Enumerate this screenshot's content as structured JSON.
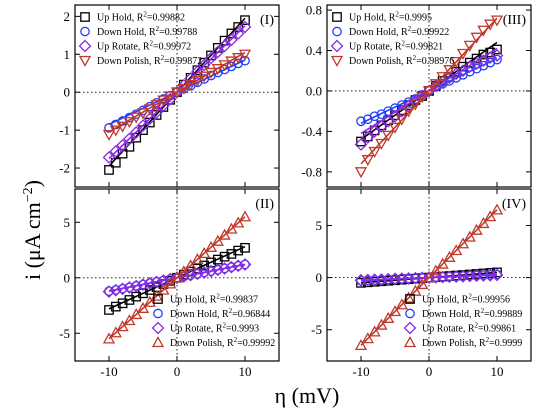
{
  "figure": {
    "ylabel_text": "i (μA cm",
    "ylabel_sup": "−2",
    "ylabel_close": ")",
    "xlabel_text": "η (mV)"
  },
  "chart_data": [
    {
      "type": "scatter",
      "panel": "(I)",
      "grid": false,
      "legend_position": "top-left",
      "xlim": [
        -15,
        15
      ],
      "ylim": [
        -2.5,
        2.3
      ],
      "x_ticks": [
        -10,
        0,
        10
      ],
      "x_tick_labels": [
        "",
        "",
        ""
      ],
      "y_ticks": [
        -2,
        -1,
        0,
        1,
        2
      ],
      "y_tick_labels": [
        "-2",
        "-1",
        "0",
        "1",
        "2"
      ],
      "x": [
        -10,
        -9,
        -8,
        -7,
        -6,
        -5,
        -4,
        -3,
        -2,
        -1,
        0,
        1,
        2,
        3,
        4,
        5,
        6,
        7,
        8,
        9,
        10
      ],
      "series": [
        {
          "name": "Up Hold",
          "r2_label": "Up Hold, R²=0.99882",
          "marker": "square",
          "color": "#000000",
          "slope": 0.195,
          "values": [
            -2.05,
            -1.86,
            -1.62,
            -1.44,
            -1.2,
            -1.0,
            -0.8,
            -0.6,
            -0.39,
            -0.2,
            0.0,
            0.2,
            0.38,
            0.58,
            0.78,
            0.97,
            1.17,
            1.36,
            1.55,
            1.72,
            1.9
          ]
        },
        {
          "name": "Down Hold",
          "r2_label": "Down Hold, R²=0.99788",
          "marker": "circle",
          "color": "#1f3fff",
          "slope": 0.085,
          "values": [
            -0.94,
            -0.85,
            -0.76,
            -0.67,
            -0.58,
            -0.48,
            -0.38,
            -0.28,
            -0.18,
            -0.09,
            0.0,
            0.09,
            0.17,
            0.26,
            0.35,
            0.44,
            0.52,
            0.6,
            0.68,
            0.76,
            0.83
          ]
        },
        {
          "name": "Up Rotate",
          "r2_label": "Up Rotate, R²=0.99972",
          "marker": "diamond",
          "color": "#8a2be2",
          "slope": 0.175,
          "values": [
            -1.72,
            -1.56,
            -1.4,
            -1.23,
            -1.06,
            -0.88,
            -0.7,
            -0.53,
            -0.35,
            -0.18,
            0.0,
            0.18,
            0.36,
            0.54,
            0.72,
            0.9,
            1.06,
            1.22,
            1.38,
            1.55,
            1.72
          ]
        },
        {
          "name": "Down Polish",
          "r2_label": "Down Polish, R²=0.99872",
          "marker": "triangle-down",
          "color": "#c0392b",
          "slope": 0.105,
          "values": [
            -1.12,
            -1.0,
            -0.9,
            -0.78,
            -0.66,
            -0.55,
            -0.44,
            -0.33,
            -0.21,
            -0.1,
            0.0,
            0.1,
            0.2,
            0.31,
            0.42,
            0.52,
            0.62,
            0.72,
            0.82,
            0.91,
            1.0
          ]
        }
      ]
    },
    {
      "type": "scatter",
      "panel": "(III)",
      "grid": false,
      "legend_position": "top-left",
      "xlim": [
        -15,
        15
      ],
      "ylim": [
        -0.95,
        0.85
      ],
      "x_ticks": [
        -10,
        0,
        10
      ],
      "x_tick_labels": [
        "",
        "",
        ""
      ],
      "y_ticks": [
        -0.8,
        -0.4,
        0.0,
        0.4,
        0.8
      ],
      "y_tick_labels": [
        "-0.8",
        "-0.4",
        "0.0",
        "0.4",
        "0.8"
      ],
      "x": [
        -10,
        -9,
        -8,
        -7,
        -6,
        -5,
        -4,
        -3,
        -2,
        -1,
        0,
        1,
        2,
        3,
        4,
        5,
        6,
        7,
        8,
        9,
        10
      ],
      "series": [
        {
          "name": "Up Hold",
          "r2_label": "Up Hold, R²=0.9995",
          "marker": "square",
          "color": "#000000",
          "slope": 0.048,
          "values": [
            -0.5,
            -0.45,
            -0.39,
            -0.34,
            -0.29,
            -0.24,
            -0.19,
            -0.14,
            -0.09,
            -0.05,
            0.0,
            0.05,
            0.1,
            0.14,
            0.19,
            0.24,
            0.28,
            0.32,
            0.36,
            0.38,
            0.41
          ]
        },
        {
          "name": "Down Hold",
          "r2_label": "Down Hold, R²=0.99922",
          "marker": "circle",
          "color": "#1f3fff",
          "slope": 0.032,
          "values": [
            -0.3,
            -0.28,
            -0.25,
            -0.23,
            -0.2,
            -0.17,
            -0.14,
            -0.11,
            -0.08,
            -0.04,
            0.0,
            0.04,
            0.07,
            0.1,
            0.13,
            0.16,
            0.19,
            0.22,
            0.25,
            0.28,
            0.31
          ]
        },
        {
          "name": "Up Rotate",
          "r2_label": "Up Rotate, R²=0.99821",
          "marker": "diamond",
          "color": "#8a2be2",
          "slope": 0.042,
          "values": [
            -0.53,
            -0.46,
            -0.4,
            -0.35,
            -0.3,
            -0.25,
            -0.2,
            -0.15,
            -0.1,
            -0.05,
            0.0,
            0.05,
            0.09,
            0.13,
            0.17,
            0.2,
            0.24,
            0.27,
            0.3,
            0.33,
            0.35
          ]
        },
        {
          "name": "Down Polish",
          "r2_label": "Down Polish, R²=0.98976",
          "marker": "triangle-down",
          "color": "#c0392b",
          "slope": 0.072,
          "values": [
            -0.8,
            -0.68,
            -0.6,
            -0.52,
            -0.44,
            -0.36,
            -0.28,
            -0.2,
            -0.13,
            -0.06,
            0.0,
            0.07,
            0.14,
            0.21,
            0.29,
            0.37,
            0.45,
            0.53,
            0.6,
            0.66,
            0.7
          ]
        }
      ]
    },
    {
      "type": "scatter",
      "panel": "(II)",
      "grid": false,
      "legend_position": "bottom-right",
      "xlim": [
        -15,
        15
      ],
      "ylim": [
        -7.5,
        8
      ],
      "x_ticks": [
        -10,
        0,
        10
      ],
      "x_tick_labels": [
        "-10",
        "0",
        "10"
      ],
      "y_ticks": [
        -5,
        0,
        5
      ],
      "y_tick_labels": [
        "-5",
        "0",
        "5"
      ],
      "x": [
        -10,
        -9,
        -8,
        -7,
        -6,
        -5,
        -4,
        -3,
        -2,
        -1,
        0,
        1,
        2,
        3,
        4,
        5,
        6,
        7,
        8,
        9,
        10
      ],
      "series": [
        {
          "name": "Up Hold",
          "r2_label": "Up Hold, R²=0.99837",
          "marker": "square",
          "color": "#000000",
          "slope": 0.28,
          "values": [
            -2.9,
            -2.6,
            -2.3,
            -2.0,
            -1.7,
            -1.4,
            -1.1,
            -0.85,
            -0.57,
            -0.28,
            0.0,
            0.28,
            0.55,
            0.82,
            1.1,
            1.38,
            1.64,
            1.9,
            2.15,
            2.45,
            2.7
          ]
        },
        {
          "name": "Down Hold",
          "r2_label": "Down Hold, R²=0.96844",
          "marker": "circle",
          "color": "#1f3fff",
          "slope": 0.12,
          "values": [
            -1.2,
            -1.1,
            -0.98,
            -0.86,
            -0.73,
            -0.6,
            -0.48,
            -0.36,
            -0.24,
            -0.12,
            0.0,
            0.12,
            0.24,
            0.36,
            0.48,
            0.6,
            0.72,
            0.84,
            0.96,
            1.08,
            1.2
          ]
        },
        {
          "name": "Up Rotate",
          "r2_label": "Up Rotate, R²=0.9993",
          "marker": "diamond",
          "color": "#8a2be2",
          "slope": 0.12,
          "values": [
            -1.25,
            -1.12,
            -1.0,
            -0.88,
            -0.75,
            -0.62,
            -0.5,
            -0.37,
            -0.25,
            -0.12,
            0.0,
            0.12,
            0.24,
            0.36,
            0.48,
            0.6,
            0.72,
            0.84,
            0.96,
            1.08,
            1.2
          ]
        },
        {
          "name": "Down Polish",
          "r2_label": "Down Polish, R²=0.99992",
          "marker": "triangle-up",
          "color": "#c0392b",
          "slope": 0.55,
          "values": [
            -5.5,
            -4.95,
            -4.4,
            -3.85,
            -3.3,
            -2.75,
            -2.2,
            -1.65,
            -1.1,
            -0.55,
            0.0,
            0.55,
            1.1,
            1.65,
            2.2,
            2.75,
            3.3,
            3.85,
            4.4,
            4.95,
            5.5
          ]
        }
      ]
    },
    {
      "type": "scatter",
      "panel": "(IV)",
      "grid": false,
      "legend_position": "bottom-right",
      "xlim": [
        -15,
        15
      ],
      "ylim": [
        -8,
        8.5
      ],
      "x_ticks": [
        -10,
        0,
        10
      ],
      "x_tick_labels": [
        "-10",
        "0",
        "10"
      ],
      "y_ticks": [
        -5,
        0,
        5
      ],
      "y_tick_labels": [
        "-5",
        "0",
        "5"
      ],
      "x": [
        -10,
        -9,
        -8,
        -7,
        -6,
        -5,
        -4,
        -3,
        -2,
        -1,
        0,
        1,
        2,
        3,
        4,
        5,
        6,
        7,
        8,
        9,
        10
      ],
      "series": [
        {
          "name": "Up Hold",
          "r2_label": "Up Hold, R²=0.99956",
          "marker": "square",
          "color": "#000000",
          "slope": 0.05,
          "values": [
            -0.5,
            -0.45,
            -0.4,
            -0.35,
            -0.3,
            -0.25,
            -0.2,
            -0.15,
            -0.1,
            -0.05,
            0.0,
            0.05,
            0.1,
            0.15,
            0.2,
            0.25,
            0.3,
            0.35,
            0.4,
            0.45,
            0.5
          ]
        },
        {
          "name": "Down Hold",
          "r2_label": "Down Hold, R²=0.99889",
          "marker": "circle",
          "color": "#1f3fff",
          "slope": 0.03,
          "values": [
            -0.3,
            -0.27,
            -0.24,
            -0.21,
            -0.18,
            -0.15,
            -0.12,
            -0.09,
            -0.06,
            -0.03,
            0.0,
            0.03,
            0.06,
            0.09,
            0.12,
            0.15,
            0.18,
            0.21,
            0.24,
            0.27,
            0.3
          ]
        },
        {
          "name": "Up Rotate",
          "r2_label": "Up Rotate, R²=0.99861",
          "marker": "diamond",
          "color": "#8a2be2",
          "slope": 0.025,
          "values": [
            -0.25,
            -0.22,
            -0.2,
            -0.18,
            -0.15,
            -0.12,
            -0.1,
            -0.08,
            -0.05,
            -0.02,
            0.0,
            0.02,
            0.05,
            0.08,
            0.1,
            0.12,
            0.15,
            0.18,
            0.2,
            0.22,
            0.25
          ]
        },
        {
          "name": "Down Polish",
          "r2_label": "Down Polish, R²=0.9999",
          "marker": "triangle-up",
          "color": "#c0392b",
          "slope": 0.65,
          "values": [
            -6.5,
            -5.85,
            -5.2,
            -4.55,
            -3.9,
            -3.25,
            -2.6,
            -1.95,
            -1.3,
            -0.65,
            0.0,
            0.65,
            1.3,
            1.95,
            2.6,
            3.25,
            3.9,
            4.55,
            5.2,
            5.85,
            6.5
          ]
        }
      ]
    }
  ]
}
